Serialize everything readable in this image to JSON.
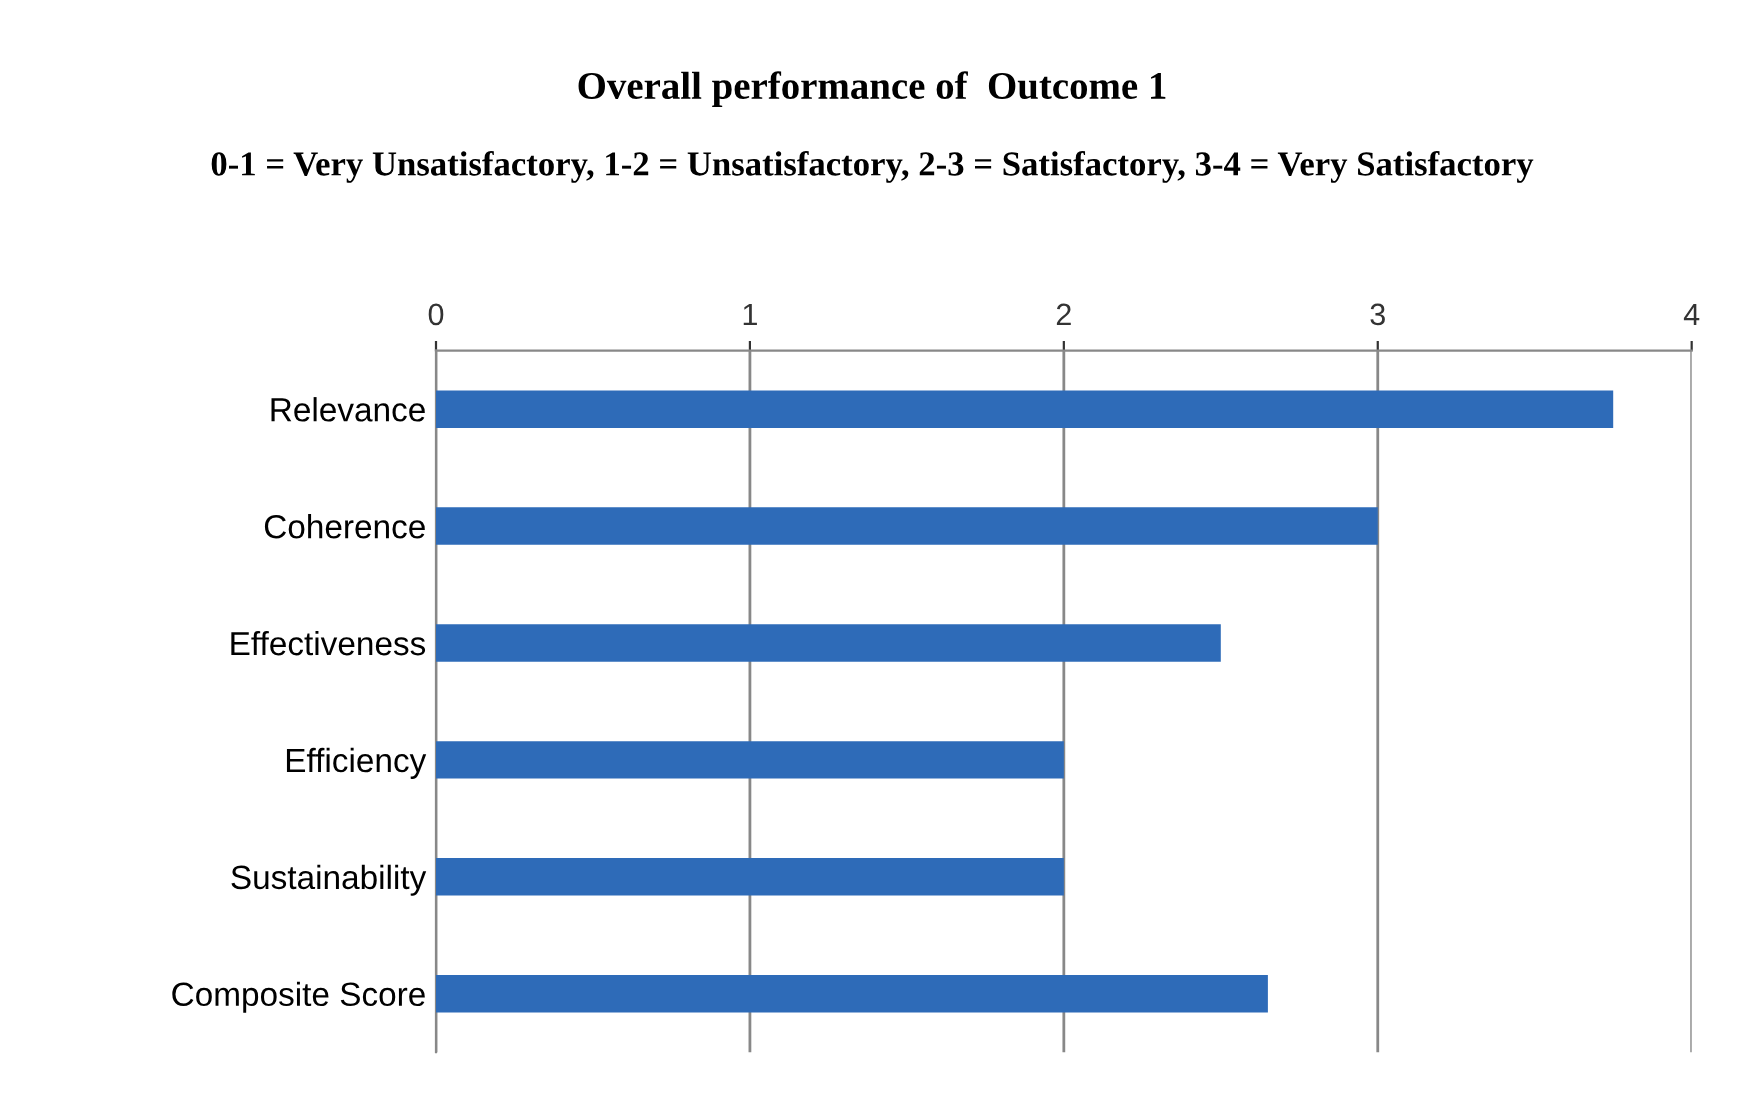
{
  "chart_data": {
    "type": "bar",
    "orientation": "horizontal",
    "title": "Overall performance of  Outcome 1",
    "subtitle": "0-1 = Very Unsatisfactory, 1-2 = Unsatisfactory, 2-3 = Satisfactory, 3-4 = Very Satisfactory",
    "categories": [
      "Relevance",
      "Coherence",
      "Effectiveness",
      "Efficiency",
      "Sustainability",
      "Composite Score"
    ],
    "values": [
      3.75,
      3.0,
      2.5,
      2.0,
      2.0,
      2.65
    ],
    "color": "#2e6bb8",
    "xlim": [
      0,
      4
    ],
    "xticks": [
      0,
      1,
      2,
      3,
      4
    ],
    "grid": "x"
  }
}
